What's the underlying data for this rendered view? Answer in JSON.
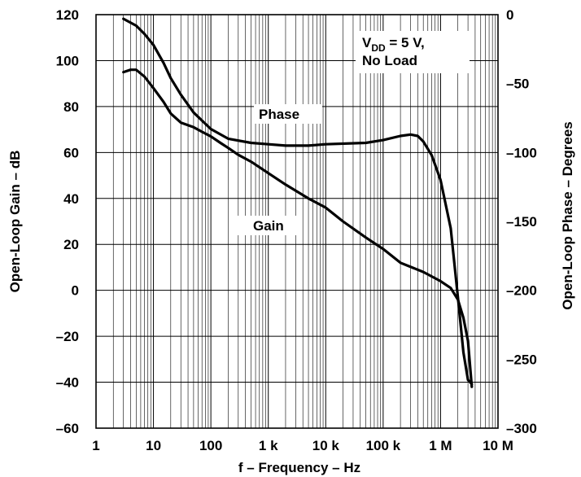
{
  "chart_data": {
    "type": "line",
    "xlabel": "f – Frequency – Hz",
    "ylabel_left": "Open-Loop Gain – dB",
    "ylabel_right": "Open-Loop Phase – Degrees",
    "x_scale": "log",
    "xlim": [
      1,
      10000000
    ],
    "ylim_left": [
      -60,
      120
    ],
    "ylim_right": [
      -300,
      0
    ],
    "x_tick_values": [
      1,
      10,
      100,
      1000,
      10000,
      100000,
      1000000,
      10000000
    ],
    "x_tick_labels": [
      "1",
      "10",
      "100",
      "1 k",
      "10 k",
      "100 k",
      "1 M",
      "10 M"
    ],
    "y_left_ticks": [
      120,
      100,
      80,
      60,
      40,
      20,
      0,
      -20,
      -40,
      -60
    ],
    "y_left_tick_labels": [
      "120",
      "100",
      "80",
      "60",
      "40",
      "20",
      "0",
      "–20",
      "–40",
      "–60"
    ],
    "y_right_ticks": [
      0,
      -50,
      -100,
      -150,
      -200,
      -250,
      -300
    ],
    "y_right_tick_labels": [
      "0",
      "–50",
      "–100",
      "–150",
      "–200",
      "–250",
      "–300"
    ],
    "grid": true,
    "annotations": {
      "condition_main": "V",
      "condition_sub": "DD",
      "condition_rest": " = 5 V,",
      "condition_line2": "No Load",
      "phase_label": "Phase",
      "gain_label": "Gain"
    },
    "series": [
      {
        "name": "Gain",
        "axis": "left",
        "x": [
          3,
          4,
          5,
          7,
          10,
          15,
          20,
          30,
          50,
          70,
          100,
          150,
          200,
          300,
          500,
          1000,
          2000,
          5000,
          10000,
          20000,
          50000,
          100000,
          200000,
          500000,
          1000000,
          1500000,
          2000000,
          2500000,
          3000000,
          3500000
        ],
        "y": [
          95,
          96,
          96,
          93,
          88,
          82,
          77,
          73,
          71,
          69,
          67,
          64,
          62,
          59,
          56,
          51,
          46,
          40,
          36,
          30,
          23,
          18,
          12,
          8,
          4,
          1,
          -4,
          -12,
          -22,
          -42
        ]
      },
      {
        "name": "Phase",
        "axis": "right",
        "x": [
          3,
          5,
          7,
          10,
          15,
          20,
          30,
          50,
          100,
          200,
          500,
          1000,
          2000,
          5000,
          10000,
          50000,
          100000,
          200000,
          300000,
          400000,
          500000,
          700000,
          1000000,
          1500000,
          2000000,
          2500000,
          3000000,
          3500000
        ],
        "y": [
          -3,
          -8,
          -14,
          -22,
          -35,
          -46,
          -58,
          -71,
          -83,
          -90,
          -93,
          -94,
          -95,
          -95,
          -94,
          -93,
          -91,
          -88,
          -87,
          -88,
          -92,
          -102,
          -120,
          -155,
          -205,
          -245,
          -265,
          -268
        ]
      }
    ]
  }
}
